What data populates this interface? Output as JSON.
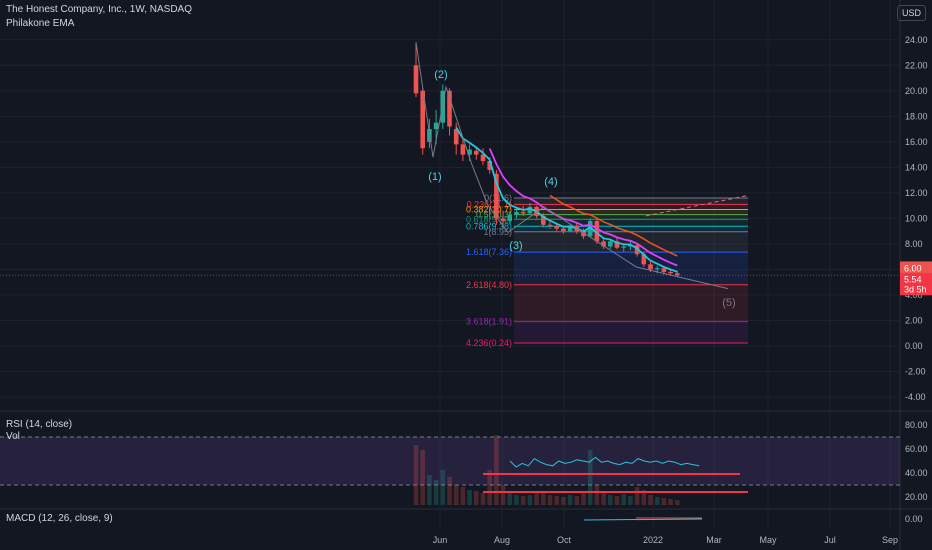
{
  "header": {
    "symbol": "The Honest Company, Inc., 1W, NASDAQ",
    "indicator": "Philakone EMA",
    "currency": "USD"
  },
  "chart_data": {
    "type": "candlestick",
    "price_axis": {
      "min": -4,
      "max": 24,
      "ticks": [
        "24.00",
        "22.00",
        "20.00",
        "18.00",
        "16.00",
        "14.00",
        "12.00",
        "10.00",
        "8.00",
        "6.00",
        "4.00",
        "2.00",
        "0.00",
        "-2.00",
        "-4.00"
      ]
    },
    "time_axis": {
      "ticks": [
        "Jun",
        "Aug",
        "Oct",
        "2022",
        "Mar",
        "May",
        "Jul",
        "Sep"
      ]
    },
    "last_price": {
      "value": "5.54",
      "countdown": "3d 5h",
      "prev": "6.00"
    },
    "candles": [
      {
        "o": 22,
        "h": 23.8,
        "l": 19.5,
        "c": 19.8
      },
      {
        "o": 20,
        "h": 20.2,
        "l": 15.0,
        "c": 15.5
      },
      {
        "o": 16,
        "h": 17.8,
        "l": 15.5,
        "c": 17.0
      },
      {
        "o": 17,
        "h": 18.5,
        "l": 15.8,
        "c": 17.5
      },
      {
        "o": 17.5,
        "h": 20.5,
        "l": 17,
        "c": 20.0
      },
      {
        "o": 20,
        "h": 20.2,
        "l": 16.5,
        "c": 17.2
      },
      {
        "o": 17,
        "h": 17.5,
        "l": 15,
        "c": 15.8
      },
      {
        "o": 15.8,
        "h": 16.2,
        "l": 14.5,
        "c": 15.0
      },
      {
        "o": 15,
        "h": 15.8,
        "l": 14.5,
        "c": 15.4
      },
      {
        "o": 15.3,
        "h": 15.6,
        "l": 14.6,
        "c": 15.0
      },
      {
        "o": 15,
        "h": 15.5,
        "l": 14.2,
        "c": 14.5
      },
      {
        "o": 14.5,
        "h": 14.8,
        "l": 13.5,
        "c": 13.8
      },
      {
        "o": 13.5,
        "h": 13.8,
        "l": 9.5,
        "c": 10.0
      },
      {
        "o": 10,
        "h": 10.6,
        "l": 9.2,
        "c": 9.8
      },
      {
        "o": 9.8,
        "h": 10.5,
        "l": 9.6,
        "c": 10.3
      },
      {
        "o": 10.3,
        "h": 10.9,
        "l": 10.0,
        "c": 10.5
      },
      {
        "o": 10.5,
        "h": 11.0,
        "l": 10.2,
        "c": 10.4
      },
      {
        "o": 10.4,
        "h": 11.2,
        "l": 10.3,
        "c": 10.9
      },
      {
        "o": 10.9,
        "h": 11.0,
        "l": 10.0,
        "c": 10.2
      },
      {
        "o": 10.2,
        "h": 10.4,
        "l": 9.3,
        "c": 9.5
      },
      {
        "o": 9.5,
        "h": 9.8,
        "l": 9.2,
        "c": 9.4
      },
      {
        "o": 9.4,
        "h": 9.6,
        "l": 9.0,
        "c": 9.2
      },
      {
        "o": 9.2,
        "h": 9.4,
        "l": 8.8,
        "c": 9.0
      },
      {
        "o": 9.0,
        "h": 9.6,
        "l": 8.9,
        "c": 9.4
      },
      {
        "o": 9.4,
        "h": 9.6,
        "l": 8.8,
        "c": 9.0
      },
      {
        "o": 9.0,
        "h": 9.2,
        "l": 8.4,
        "c": 8.6
      },
      {
        "o": 8.6,
        "h": 10.0,
        "l": 8.5,
        "c": 9.8
      },
      {
        "o": 9.8,
        "h": 10.0,
        "l": 8.0,
        "c": 8.2
      },
      {
        "o": 8.2,
        "h": 8.4,
        "l": 7.6,
        "c": 7.8
      },
      {
        "o": 7.8,
        "h": 8.4,
        "l": 7.6,
        "c": 8.2
      },
      {
        "o": 8.2,
        "h": 8.5,
        "l": 7.6,
        "c": 7.7
      },
      {
        "o": 7.7,
        "h": 8.0,
        "l": 7.4,
        "c": 7.8
      },
      {
        "o": 7.8,
        "h": 8.2,
        "l": 7.5,
        "c": 7.9
      },
      {
        "o": 7.9,
        "h": 8.0,
        "l": 7.0,
        "c": 7.2
      },
      {
        "o": 7.2,
        "h": 7.4,
        "l": 6.2,
        "c": 6.4
      },
      {
        "o": 6.4,
        "h": 6.6,
        "l": 5.8,
        "c": 6.0
      },
      {
        "o": 6.0,
        "h": 6.3,
        "l": 5.7,
        "c": 6.1
      },
      {
        "o": 6.1,
        "h": 6.2,
        "l": 5.6,
        "c": 5.8
      },
      {
        "o": 5.8,
        "h": 6.0,
        "l": 5.5,
        "c": 5.7
      },
      {
        "o": 5.7,
        "h": 5.9,
        "l": 5.4,
        "c": 5.54
      }
    ],
    "wave_labels": [
      "(1)",
      "(2)",
      "(3)",
      "(4)",
      "(5)"
    ],
    "fib_levels": [
      {
        "label": "0(11.6)",
        "value": 11.6
      },
      {
        "label": "0.236(11.1)",
        "value": 11.1
      },
      {
        "label": "0.382(10.7)",
        "value": 10.7
      },
      {
        "label": "0.5(10.3)",
        "value": 10.3
      },
      {
        "label": "0.618(9.92)",
        "value": 9.92
      },
      {
        "label": "0.786(9.38)",
        "value": 9.38
      },
      {
        "label": "1(8.95)",
        "value": 8.95
      },
      {
        "label": "1.618(7.36)",
        "value": 7.36
      },
      {
        "label": "2.618(4.80)",
        "value": 4.8
      },
      {
        "label": "3.618(1.91)",
        "value": 1.91
      },
      {
        "label": "4.236(0.24)",
        "value": 0.24
      }
    ],
    "rsi": {
      "title": "RSI (14, close)",
      "levels": [
        70,
        30
      ],
      "ticks": [
        "80.00",
        "60.00",
        "40.00",
        "20.00"
      ],
      "values": [
        50,
        45,
        48,
        46,
        52,
        49,
        47,
        46,
        50,
        48,
        49,
        51,
        50,
        49,
        53,
        49,
        50,
        48,
        47,
        49,
        48,
        52,
        50,
        49,
        50,
        48,
        50,
        49,
        47,
        48,
        47,
        46
      ]
    },
    "vol": {
      "title": "Vol"
    },
    "macd": {
      "title": "MACD (12, 26, close, 9)",
      "ticks": [
        "0.00"
      ]
    }
  }
}
